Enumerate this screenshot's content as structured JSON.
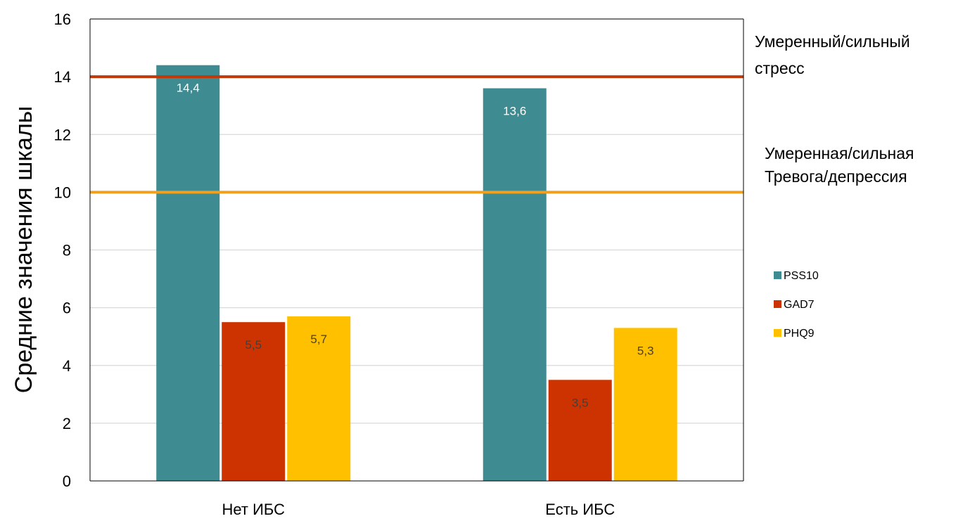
{
  "chart_data": {
    "type": "bar",
    "ylabel": "Средние значения шкалы",
    "ylim": [
      0,
      16
    ],
    "ytick_step": 2,
    "grid": true,
    "legend_position": "right",
    "categories": [
      "Нет ИБС",
      "Есть ИБС"
    ],
    "series": [
      {
        "name": "PSS10",
        "values": [
          14.4,
          13.6
        ],
        "labels": [
          "14,4",
          "13,6"
        ],
        "color": "#3E8B92",
        "label_color": "#ffffff"
      },
      {
        "name": "GAD7",
        "values": [
          5.5,
          3.5
        ],
        "labels": [
          "5,5",
          "3,5"
        ],
        "color": "#CC3300",
        "label_color": "#404040"
      },
      {
        "name": "PHQ9",
        "values": [
          5.7,
          5.3
        ],
        "labels": [
          "5,7",
          "5,3"
        ],
        "color": "#FFC000",
        "label_color": "#404040"
      }
    ],
    "reference_lines": [
      {
        "value": 14,
        "color": "#C0390B",
        "label_lines": [
          "Умеренный/сильный",
          "стресс"
        ]
      },
      {
        "value": 10,
        "color": "#F0A020",
        "label_lines": [
          "Умеренная/сильная",
          "Тревога/депрессия"
        ]
      }
    ]
  }
}
